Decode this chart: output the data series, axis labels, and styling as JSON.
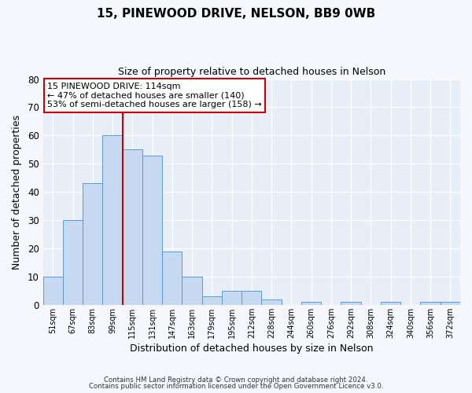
{
  "title": "15, PINEWOOD DRIVE, NELSON, BB9 0WB",
  "subtitle": "Size of property relative to detached houses in Nelson",
  "xlabel": "Distribution of detached houses by size in Nelson",
  "ylabel": "Number of detached properties",
  "bar_color": "#c6d9f0",
  "bar_edge_color": "#5b9bd5",
  "background_color": "#e8eef8",
  "fig_background": "#f5f7fc",
  "bin_labels": [
    "51sqm",
    "67sqm",
    "83sqm",
    "99sqm",
    "115sqm",
    "131sqm",
    "147sqm",
    "163sqm",
    "179sqm",
    "195sqm",
    "212sqm",
    "228sqm",
    "244sqm",
    "260sqm",
    "276sqm",
    "292sqm",
    "308sqm",
    "324sqm",
    "340sqm",
    "356sqm",
    "372sqm"
  ],
  "bar_heights": [
    10,
    30,
    43,
    60,
    55,
    53,
    19,
    10,
    3,
    5,
    5,
    2,
    0,
    1,
    0,
    1,
    0,
    1,
    0,
    1,
    1
  ],
  "ylim": [
    0,
    80
  ],
  "yticks": [
    0,
    10,
    20,
    30,
    40,
    50,
    60,
    70,
    80
  ],
  "vline_x": 4,
  "vline_color": "#cc0000",
  "annotation_title": "15 PINEWOOD DRIVE: 114sqm",
  "annotation_line1": "← 47% of detached houses are smaller (140)",
  "annotation_line2": "53% of semi-detached houses are larger (158) →",
  "annotation_box_color": "#ffffff",
  "annotation_box_edge": "#cc0000",
  "footer1": "Contains HM Land Registry data © Crown copyright and database right 2024.",
  "footer2": "Contains public sector information licensed under the Open Government Licence v3.0."
}
